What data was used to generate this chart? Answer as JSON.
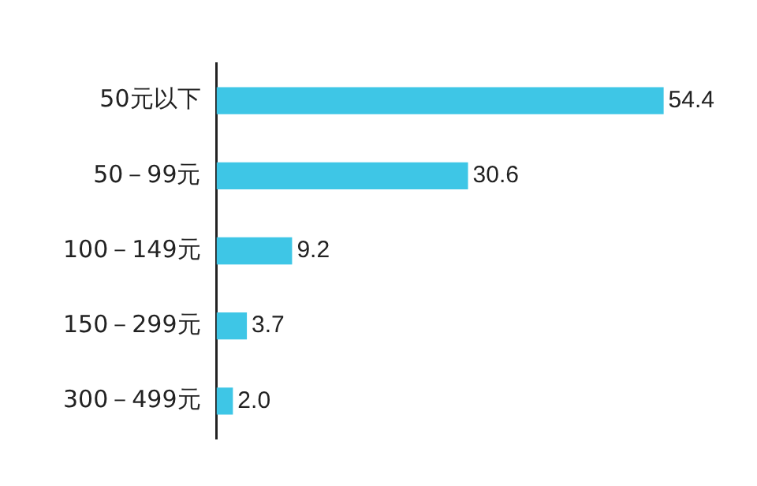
{
  "chart_data": {
    "type": "bar",
    "orientation": "horizontal",
    "categories": [
      "50元以下",
      "50－99元",
      "100－149元",
      "150－299元",
      "300－499元"
    ],
    "values": [
      54.4,
      30.6,
      9.2,
      3.7,
      2.0
    ],
    "value_labels": [
      "54.4",
      "30.6",
      "9.2",
      "3.7",
      "2.0"
    ],
    "color": "#3ec6e6"
  }
}
